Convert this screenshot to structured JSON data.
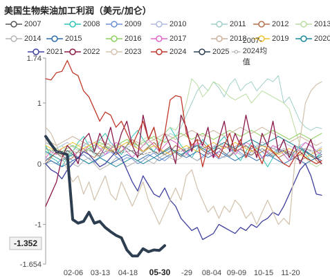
{
  "title": "美国生物柴油加工利润（美元/加仑）",
  "legend_items": [
    {
      "label": "2007",
      "color": "#555555"
    },
    {
      "label": "2008",
      "color": "#2ec4b6"
    },
    {
      "label": "2009",
      "color": "#6b8fd6"
    },
    {
      "label": "2010",
      "color": "#b0b8e0"
    },
    {
      "label": "2011",
      "color": "#9fcfc9"
    },
    {
      "label": "2012",
      "color": "#b5704a"
    },
    {
      "label": "2013",
      "color": "#b9dca0"
    },
    {
      "label": "2014",
      "color": "#b3b3b3"
    },
    {
      "label": "2015",
      "color": "#2b6cb0"
    },
    {
      "label": "2016",
      "color": "#8ccf5a"
    },
    {
      "label": "2017",
      "color": "#e066c8"
    },
    {
      "label": "2018",
      "color": "#c9b09a"
    },
    {
      "label": "2019",
      "color": "#f2c12e"
    },
    {
      "label": "2020",
      "color": "#1a8a9a"
    },
    {
      "label": "2021",
      "color": "#3e3f9e"
    },
    {
      "label": "2022",
      "color": "#8b1a4a"
    },
    {
      "label": "2023",
      "color": "#d4c4b0"
    },
    {
      "label": "2024",
      "color": "#c0392b"
    },
    {
      "label": "2025",
      "color": "#2c3e50"
    },
    {
      "label": "2007-2024均值",
      "color": "#888888"
    }
  ],
  "current_value_label": "-1.352",
  "chart_data": {
    "type": "line",
    "title": "美国生物柴油加工利润（美元/加仑）",
    "y_range": [
      -1.654,
      1.74
    ],
    "y_ticks": [
      "1.74",
      "1",
      "0",
      "-1",
      "-1.654"
    ],
    "x_ticks": [
      "02-06",
      "03-13",
      "04-18",
      "05-30",
      "-29",
      "08-04",
      "09-09",
      "10-15",
      "11-20"
    ],
    "x_tick_highlight": "05-30",
    "x_points": 52,
    "grid": false,
    "legend_position": "top",
    "series": [
      {
        "name": "2007",
        "color": "#555555",
        "width": 1,
        "values": [
          0.05,
          0.12,
          0.18,
          0.1,
          0.22,
          0.15,
          0.08,
          0.2,
          0.25,
          0.18,
          0.12,
          0.28,
          0.22,
          0.15,
          0.3,
          0.25,
          0.2,
          0.12,
          0.18,
          0.26,
          0.2,
          0.15,
          0.22,
          0.28,
          0.18,
          0.12,
          0.2,
          0.25,
          0.3,
          0.22,
          0.16,
          0.2,
          0.26,
          0.18,
          0.12,
          0.2,
          0.24,
          0.18,
          0.14,
          0.2,
          0.25,
          0.18,
          0.12,
          0.18,
          0.22,
          0.16,
          0.1,
          0.15,
          0.2,
          0.12,
          0.08,
          0.12
        ]
      },
      {
        "name": "2008",
        "color": "#2ec4b6",
        "width": 1,
        "values": [
          0.3,
          0.1,
          0.05,
          -0.05,
          0.1,
          0.2,
          0.35,
          0.45,
          0.3,
          0.2,
          0.4,
          0.5,
          0.35,
          0.25,
          0.15,
          0.3,
          0.45,
          0.55,
          0.4,
          0.3,
          0.2,
          0.35,
          0.5,
          0.6,
          0.45,
          0.3,
          0.2,
          0.1,
          0.25,
          0.4,
          0.3,
          0.2,
          0.35,
          0.45,
          0.3,
          0.15,
          0.05,
          0.2,
          0.35,
          0.25,
          0.1,
          -0.05,
          0.1,
          0.25,
          0.15,
          0.05,
          0.2,
          0.3,
          0.15,
          0.05,
          0.1,
          0.2
        ]
      },
      {
        "name": "2009",
        "color": "#6b8fd6",
        "width": 1,
        "values": [
          0.1,
          0.05,
          0.0,
          0.08,
          0.12,
          0.05,
          0.1,
          0.15,
          0.08,
          0.02,
          0.1,
          0.15,
          0.2,
          0.12,
          0.05,
          0.1,
          0.08,
          0.0,
          0.05,
          0.12,
          0.18,
          0.1,
          0.05,
          0.12,
          0.2,
          0.25,
          0.18,
          0.1,
          0.05,
          0.12,
          0.2,
          0.15,
          0.08,
          0.12,
          0.2,
          0.25,
          0.18,
          0.12,
          0.2,
          0.26,
          0.2,
          0.12,
          0.18,
          0.25,
          0.2,
          0.12,
          0.2,
          0.28,
          0.22,
          0.15,
          0.2,
          0.25
        ]
      },
      {
        "name": "2010",
        "color": "#b0b8e0",
        "width": 1,
        "values": [
          0.35,
          0.3,
          0.25,
          0.3,
          0.35,
          0.28,
          0.22,
          0.3,
          0.36,
          0.3,
          0.24,
          0.3,
          0.35,
          0.28,
          0.2,
          0.26,
          0.32,
          0.25,
          0.18,
          0.25,
          0.3,
          0.22,
          0.15,
          0.22,
          0.3,
          0.25,
          0.18,
          0.25,
          0.32,
          0.25,
          0.2,
          0.28,
          0.35,
          0.3,
          0.22,
          0.28,
          0.35,
          0.3,
          0.24,
          0.3,
          0.36,
          0.3,
          0.25,
          0.3,
          0.35,
          0.3,
          0.25,
          0.3,
          0.35,
          0.28,
          0.22,
          0.28
        ]
      },
      {
        "name": "2011",
        "color": "#9fcfc9",
        "width": 1,
        "values": [
          0.2,
          0.15,
          0.25,
          0.3,
          0.2,
          0.1,
          0.2,
          0.3,
          0.25,
          0.15,
          0.1,
          0.2,
          0.3,
          0.25,
          0.2,
          0.3,
          0.35,
          0.25,
          0.2,
          0.28,
          0.35,
          0.3,
          0.4,
          0.5,
          0.45,
          0.6,
          0.8,
          1.0,
          1.2,
          1.3,
          1.2,
          1.35,
          1.25,
          1.1,
          1.3,
          1.4,
          1.2,
          1.3,
          1.35,
          1.2,
          1.3,
          1.4,
          1.35,
          1.45,
          1.0,
          1.1,
          0.9,
          0.7,
          0.6,
          0.55,
          0.6,
          0.58
        ]
      },
      {
        "name": "2012",
        "color": "#b5704a",
        "width": 1,
        "values": [
          0.0,
          0.1,
          0.2,
          0.15,
          0.05,
          0.1,
          0.2,
          0.25,
          0.15,
          0.1,
          0.2,
          0.3,
          0.25,
          0.15,
          0.2,
          0.3,
          0.4,
          0.3,
          0.2,
          0.28,
          0.35,
          0.25,
          0.15,
          0.2,
          0.3,
          0.25,
          0.2,
          0.3,
          0.4,
          0.35,
          0.25,
          0.2,
          0.3,
          0.35,
          0.28,
          0.2,
          0.25,
          0.3,
          0.22,
          0.15,
          0.2,
          0.25,
          0.18,
          0.1,
          0.15,
          0.2,
          0.12,
          0.05,
          0.1,
          0.15,
          0.05,
          0.0
        ]
      },
      {
        "name": "2013",
        "color": "#b9dca0",
        "width": 1,
        "values": [
          0.15,
          0.2,
          0.25,
          0.2,
          0.15,
          0.2,
          0.3,
          0.35,
          0.3,
          0.25,
          0.3,
          0.35,
          0.3,
          0.25,
          0.35,
          0.4,
          0.35,
          0.3,
          0.4,
          0.45,
          0.4,
          0.35,
          0.5,
          0.6,
          0.55,
          0.7,
          1.0,
          1.4,
          1.3,
          1.1,
          1.2,
          1.35,
          1.3,
          1.2,
          1.1,
          1.05,
          1.1,
          1.15,
          1.0,
          1.1,
          1.2,
          1.15,
          1.1,
          1.05,
          1.0,
          0.9,
          0.6,
          0.3,
          0.1,
          0.0,
          -0.05,
          0.0
        ]
      },
      {
        "name": "2014",
        "color": "#b3b3b3",
        "width": 1,
        "values": [
          0.35,
          0.3,
          0.2,
          0.1,
          0.05,
          0.0,
          -0.05,
          0.05,
          0.1,
          0.0,
          -0.1,
          -0.05,
          0.0,
          0.1,
          0.05,
          -0.05,
          0.0,
          0.05,
          0.1,
          0.05,
          0.0,
          0.1,
          0.15,
          0.1,
          0.05,
          0.1,
          0.15,
          0.1,
          0.05,
          0.1,
          0.15,
          0.2,
          0.15,
          0.1,
          0.15,
          0.2,
          0.15,
          0.1,
          0.15,
          0.2,
          0.25,
          0.2,
          0.15,
          0.2,
          0.25,
          0.2,
          0.15,
          0.2,
          0.25,
          0.2,
          0.15,
          0.2
        ]
      },
      {
        "name": "2015",
        "color": "#2b6cb0",
        "width": 1,
        "values": [
          0.0,
          0.05,
          0.0,
          -0.05,
          0.0,
          0.05,
          0.1,
          0.05,
          0.0,
          0.05,
          0.1,
          0.05,
          0.0,
          0.05,
          0.1,
          0.15,
          0.1,
          0.05,
          0.1,
          0.15,
          0.1,
          0.05,
          0.1,
          0.15,
          0.2,
          0.15,
          0.1,
          0.15,
          0.2,
          0.15,
          0.1,
          0.15,
          0.2,
          0.15,
          0.1,
          0.05,
          0.1,
          0.15,
          0.1,
          0.05,
          0.1,
          0.15,
          0.1,
          0.05,
          0.0,
          0.05,
          0.1,
          0.05,
          0.0,
          0.05,
          0.1,
          0.05
        ]
      },
      {
        "name": "2016",
        "color": "#8ccf5a",
        "width": 1,
        "values": [
          0.25,
          0.2,
          0.15,
          0.2,
          0.25,
          0.3,
          0.25,
          0.2,
          0.25,
          0.3,
          0.35,
          0.3,
          0.25,
          0.3,
          0.35,
          0.4,
          0.35,
          0.3,
          0.35,
          0.4,
          0.45,
          0.4,
          0.35,
          0.4,
          0.45,
          0.5,
          0.45,
          0.4,
          0.45,
          0.5,
          0.45,
          0.4,
          0.45,
          0.5,
          0.55,
          0.5,
          0.45,
          0.5,
          0.55,
          0.5,
          0.45,
          0.5,
          0.55,
          0.5,
          0.45,
          0.4,
          0.45,
          0.5,
          0.45,
          0.4,
          0.45,
          0.5
        ]
      },
      {
        "name": "2017",
        "color": "#e066c8",
        "width": 1,
        "values": [
          0.1,
          0.2,
          0.15,
          0.25,
          0.3,
          0.2,
          0.1,
          0.2,
          0.3,
          0.35,
          0.25,
          0.15,
          0.25,
          0.35,
          0.3,
          0.2,
          0.1,
          0.2,
          0.3,
          0.4,
          0.3,
          0.2,
          0.3,
          0.4,
          0.35,
          0.25,
          0.15,
          0.25,
          0.35,
          0.3,
          0.2,
          0.1,
          0.2,
          0.3,
          0.25,
          0.15,
          0.25,
          0.35,
          0.3,
          0.2,
          0.1,
          0.2,
          0.3,
          0.25,
          0.15,
          0.05,
          0.15,
          0.25,
          0.35,
          0.3,
          0.2,
          0.15
        ]
      },
      {
        "name": "2018",
        "color": "#c9b09a",
        "width": 1,
        "values": [
          0.4,
          0.35,
          0.3,
          0.35,
          0.4,
          0.45,
          0.4,
          0.35,
          0.3,
          0.35,
          0.4,
          0.35,
          0.3,
          0.25,
          0.3,
          0.35,
          0.4,
          0.35,
          0.3,
          0.35,
          0.4,
          0.45,
          0.5,
          0.45,
          0.4,
          0.45,
          0.5,
          0.55,
          0.5,
          0.45,
          0.5,
          0.55,
          0.5,
          0.45,
          0.5,
          0.55,
          0.6,
          0.55,
          0.5,
          0.55,
          0.6,
          0.55,
          0.5,
          0.45,
          0.4,
          0.35,
          0.4,
          0.45,
          0.4,
          0.35,
          0.3,
          0.35
        ]
      },
      {
        "name": "2019",
        "color": "#f2c12e",
        "width": 1,
        "values": [
          0.3,
          0.25,
          0.2,
          0.25,
          0.3,
          0.35,
          0.3,
          0.25,
          0.3,
          0.35,
          0.3,
          0.25,
          0.2,
          0.25,
          0.3,
          0.35,
          0.3,
          0.25,
          0.2,
          0.25,
          0.3,
          0.25,
          0.2,
          0.15,
          0.2,
          0.25,
          0.3,
          0.25,
          0.2,
          0.25,
          0.3,
          0.35,
          0.3,
          0.25,
          0.3,
          0.35,
          0.3,
          0.25,
          0.2,
          0.25,
          0.3,
          0.25,
          0.2,
          0.15,
          0.2,
          0.25,
          0.2,
          0.15,
          0.1,
          0.15,
          0.2,
          0.25
        ]
      },
      {
        "name": "2020",
        "color": "#1a8a9a",
        "width": 1,
        "values": [
          0.2,
          0.15,
          0.1,
          0.05,
          0.1,
          0.15,
          0.1,
          0.05,
          0.0,
          0.05,
          0.1,
          0.05,
          0.0,
          -0.05,
          0.0,
          0.05,
          0.1,
          0.05,
          0.0,
          0.05,
          0.1,
          0.15,
          0.2,
          0.25,
          0.2,
          0.15,
          0.2,
          0.25,
          0.3,
          0.25,
          0.2,
          0.25,
          0.3,
          0.35,
          0.3,
          0.25,
          0.3,
          0.35,
          0.4,
          0.35,
          0.3,
          0.35,
          0.4,
          0.45,
          0.4,
          0.35,
          0.3,
          0.25,
          0.2,
          0.15,
          0.1,
          0.15
        ]
      },
      {
        "name": "2021",
        "color": "#3e3f9e",
        "width": 1.3,
        "values": [
          0.0,
          -0.1,
          -0.15,
          -0.25,
          -0.1,
          0.0,
          0.1,
          0.2,
          0.15,
          0.05,
          -0.05,
          0.0,
          0.1,
          0.2,
          0.1,
          -0.1,
          -0.3,
          -0.45,
          -0.2,
          -0.35,
          -0.5,
          -0.55,
          -0.4,
          -0.6,
          -0.7,
          -0.9,
          -1.0,
          -1.1,
          -1.05,
          -1.25,
          -1.2,
          -1.15,
          -1.0,
          -1.05,
          -1.1,
          -1.15,
          -1.05,
          -1.1,
          -1.0,
          -1.05,
          -0.95,
          -0.9,
          -0.8,
          -0.85,
          -0.7,
          -0.5,
          -0.3,
          -0.1,
          0.0,
          -0.2,
          -0.5,
          -0.52
        ]
      },
      {
        "name": "2022",
        "color": "#8b1a4a",
        "width": 1.3,
        "values": [
          -0.7,
          -0.5,
          -0.3,
          0.1,
          0.3,
          0.2,
          0.0,
          0.4,
          0.5,
          0.2,
          0.5,
          0.3,
          0.6,
          0.2,
          0.5,
          0.7,
          0.3,
          0.1,
          0.8,
          0.4,
          0.6,
          0.2,
          0.5,
          0.3,
          0.0,
          0.8,
          0.6,
          0.2,
          0.5,
          0.3,
          0.6,
          0.1,
          0.4,
          0.7,
          0.2,
          0.5,
          0.3,
          0.8,
          0.4,
          0.1,
          0.5,
          0.3,
          0.7,
          0.2,
          0.4,
          0.1,
          0.3,
          0.0,
          0.2,
          0.4,
          0.1,
          0.0
        ]
      },
      {
        "name": "2023",
        "color": "#d4c4b0",
        "width": 1.3,
        "values": [
          0.6,
          0.5,
          0.3,
          0.1,
          -0.1,
          -0.3,
          -0.2,
          -0.5,
          -0.3,
          -0.6,
          -0.4,
          -0.2,
          -0.5,
          -0.6,
          -0.3,
          -0.5,
          -0.7,
          -0.5,
          -0.3,
          -0.6,
          -0.8,
          -1.0,
          -0.8,
          -0.6,
          -0.4,
          -0.6,
          -0.2,
          -0.1,
          -0.4,
          -0.6,
          -0.8,
          -0.7,
          -0.9,
          -0.7,
          -0.8,
          -0.6,
          -0.7,
          -0.9,
          -0.8,
          -1.0,
          -0.8,
          -0.6,
          -0.8,
          -1.0,
          -0.9,
          -1.0,
          0.0,
          0.4,
          1.0,
          1.2,
          1.3,
          1.35
        ]
      },
      {
        "name": "2024",
        "color": "#c0392b",
        "width": 1.3,
        "values": [
          1.4,
          1.38,
          1.5,
          1.52,
          1.7,
          1.5,
          1.45,
          1.2,
          1.1,
          0.9,
          0.7,
          0.85,
          0.8,
          0.6,
          0.7,
          0.5,
          0.3,
          0.5,
          0.7,
          0.4,
          0.6,
          0.2,
          0.5,
          1.05,
          1.12,
          1.1,
          0.5,
          0.3,
          0.4,
          -0.05,
          0.3,
          0.2,
          0.1,
          0.3,
          0.5,
          0.2,
          0.4,
          0.1,
          0.3,
          0.2,
          0.0,
          0.3,
          0.2,
          0.1,
          0.0,
          -0.05,
          0.1,
          0.2,
          0.1,
          0.05,
          0.0,
          0.05
        ]
      },
      {
        "name": "2025",
        "color": "#2c3e50",
        "width": 4,
        "values": [
          0.45,
          0.32,
          0.2,
          0.18,
          0.15,
          -0.92,
          -0.98,
          -0.95,
          -0.8,
          -0.98,
          -0.95,
          -1.05,
          -1.12,
          -1.18,
          -1.22,
          -1.42,
          -1.52,
          -1.52,
          -1.4,
          -1.45,
          -1.42,
          -1.43,
          -1.35
        ]
      },
      {
        "name": "2007-2024均值",
        "color": "#888888",
        "width": 1,
        "dash": "3,2",
        "values": [
          0.25,
          0.22,
          0.2,
          0.18,
          0.22,
          0.2,
          0.18,
          0.2,
          0.22,
          0.18,
          0.16,
          0.2,
          0.22,
          0.2,
          0.18,
          0.2,
          0.22,
          0.18,
          0.15,
          0.18,
          0.2,
          0.18,
          0.15,
          0.2,
          0.22,
          0.2,
          0.25,
          0.28,
          0.3,
          0.28,
          0.25,
          0.28,
          0.3,
          0.28,
          0.25,
          0.28,
          0.3,
          0.28,
          0.25,
          0.28,
          0.3,
          0.28,
          0.25,
          0.22,
          0.2,
          0.15,
          0.2,
          0.22,
          0.25,
          0.22,
          0.2,
          0.22
        ]
      }
    ]
  }
}
